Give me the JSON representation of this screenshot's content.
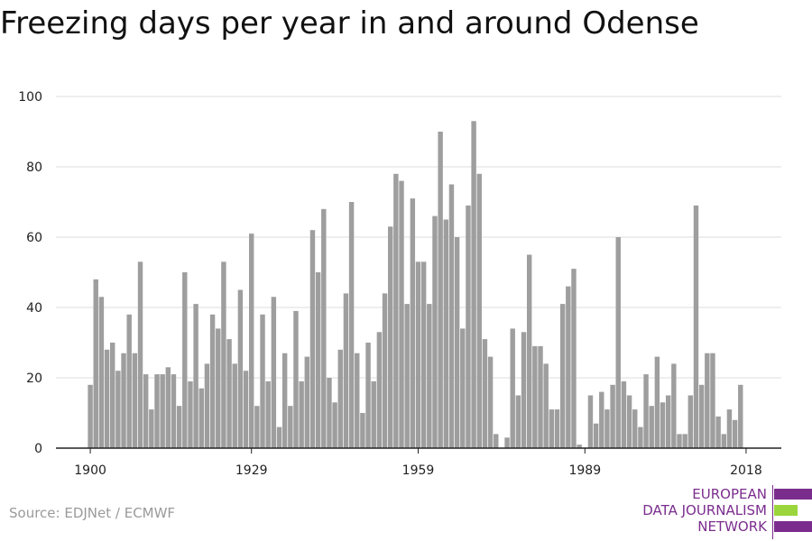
{
  "title": "Freezing days per year in and around Odense",
  "source": "Source: EDJNet / ECMWF",
  "logo": {
    "line1": "EUROPEAN",
    "line2": "DATA JOURNALISM",
    "line3": "NETWORK",
    "purple": "#7b2d8e",
    "green": "#9ad63b"
  },
  "colors": {
    "bar": "#9e9e9e",
    "grid": "#dddddd",
    "axis": "#222222"
  },
  "chart_data": {
    "type": "bar",
    "title": "Freezing days per year in and around Odense",
    "xlabel": "",
    "ylabel": "",
    "x_start": 1900,
    "x_end": 2018,
    "xlim": [
      1899.5,
      2018.5
    ],
    "ylim": [
      0,
      100
    ],
    "y_ticks": [
      0,
      20,
      40,
      60,
      80,
      100
    ],
    "x_ticks": [
      1900,
      1929,
      1959,
      1989,
      2018
    ],
    "grid": true,
    "values": [
      18,
      48,
      43,
      28,
      30,
      22,
      27,
      38,
      27,
      53,
      21,
      11,
      21,
      21,
      23,
      21,
      12,
      50,
      19,
      41,
      17,
      24,
      38,
      34,
      53,
      31,
      24,
      45,
      22,
      61,
      12,
      38,
      19,
      43,
      6,
      27,
      12,
      39,
      19,
      26,
      62,
      50,
      68,
      20,
      13,
      28,
      44,
      70,
      27,
      10,
      30,
      19,
      33,
      44,
      63,
      78,
      76,
      41,
      71,
      53,
      53,
      41,
      66,
      90,
      65,
      75,
      60,
      34,
      69,
      93,
      78,
      31,
      26,
      4,
      0,
      3,
      34,
      15,
      33,
      55,
      29,
      29,
      24,
      11,
      11,
      41,
      46,
      51,
      1,
      0,
      15,
      7,
      16,
      11,
      18,
      60,
      19,
      15,
      11,
      6,
      21,
      12,
      26,
      13,
      15,
      24,
      4,
      4,
      15,
      69,
      18,
      27,
      27,
      9,
      4,
      11,
      8,
      18,
      0
    ]
  }
}
